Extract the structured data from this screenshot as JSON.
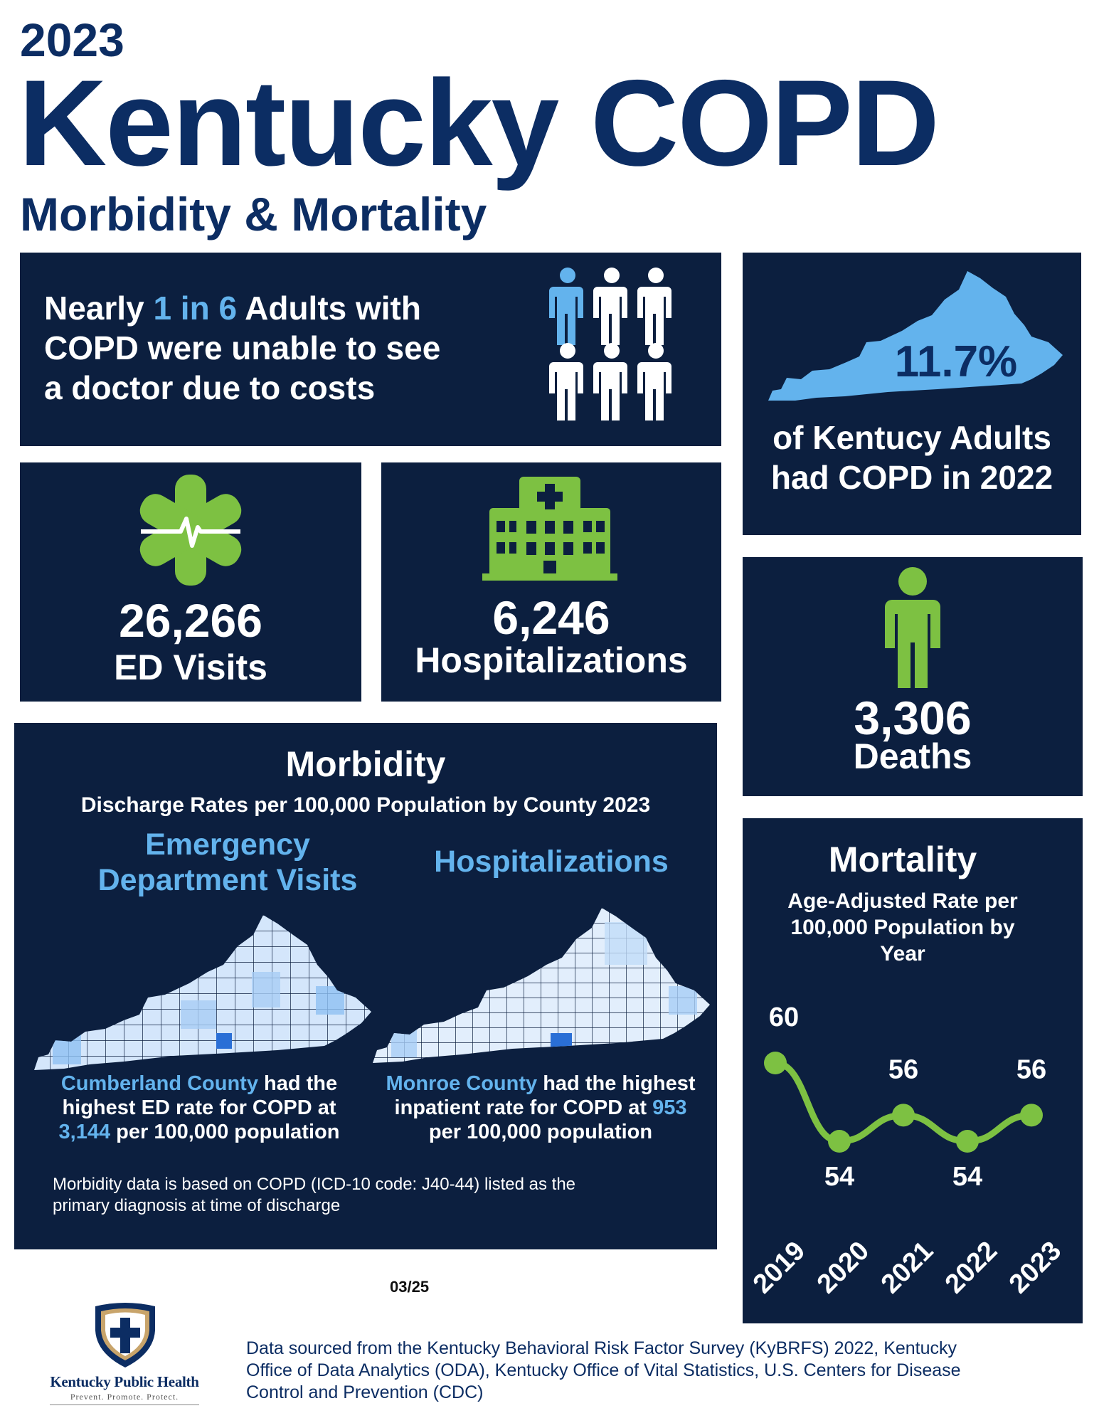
{
  "header": {
    "year": "2023",
    "title": "Kentucky COPD",
    "subtitle": "Morbidity & Mortality"
  },
  "cost_panel": {
    "line1_pre": "Nearly ",
    "line1_hl": "1 in 6",
    "line1_post": " Adults with",
    "line2": "COPD were unable to see",
    "line3": "a doctor due to costs",
    "icon": "people-group-icon"
  },
  "prevalence_panel": {
    "value": "11.7%",
    "line1": "of Kentucy Adults",
    "line2": "had COPD in 2022"
  },
  "ed_panel": {
    "value": "26,266",
    "label": "ED Visits",
    "icon": "medical-star-icon"
  },
  "hosp_panel": {
    "value": "6,246",
    "label": "Hospitalizations",
    "icon": "hospital-icon"
  },
  "deaths_panel": {
    "value": "3,306",
    "label": "Deaths",
    "icon": "person-icon"
  },
  "morbidity": {
    "title": "Morbidity",
    "subtitle": "Discharge Rates per 100,000 Population by County 2023",
    "ed_title_1": "Emergency",
    "ed_title_2": "Department Visits",
    "hosp_title": "Hospitalizations",
    "ed_caption": {
      "county": "Cumberland County",
      "text1": " had the",
      "text2": "highest ED rate for COPD at",
      "rate": "3,144",
      "text3": " per 100,000 population"
    },
    "hosp_caption": {
      "county": "Monroe County",
      "text1": " had the highest",
      "text2a": "inpatient rate for COPD at ",
      "rate": "953",
      "text3": "per 100,000 population"
    },
    "note1": "Morbidity data is based on COPD (ICD-10 code: J40-44) listed as the",
    "note2": "primary diagnosis at time of discharge"
  },
  "mortality": {
    "title": "Mortality",
    "sub1": "Age-Adjusted Rate per",
    "sub2": "100,000 Population by",
    "sub3": "Year"
  },
  "chart_data": {
    "type": "line",
    "title": "Mortality",
    "subtitle": "Age-Adjusted Rate per 100,000 Population by Year",
    "x": [
      "2019",
      "2020",
      "2021",
      "2022",
      "2023"
    ],
    "series": [
      {
        "values": [
          60,
          54,
          56,
          54,
          56
        ],
        "color": "#7dc142"
      }
    ],
    "grid": false,
    "data_labels": true
  },
  "footer": {
    "date": "03/25",
    "logo_name": "Kentucky Public Health",
    "logo_tagline": "Prevent. Promote. Protect.",
    "source1": "Data sourced from the Kentucky Behavioral Risk Factor Survey (KyBRFS) 2022, Kentucky",
    "source2": "Office of Data Analytics (ODA), Kentucky Office of Vital Statistics, U.S. Centers for Disease",
    "source3": "Control and Prevention (CDC)"
  },
  "colors": {
    "navy": "#0c1f3f",
    "title_blue": "#0c2d63",
    "light_blue": "#63b3ed",
    "green": "#7dc142"
  }
}
